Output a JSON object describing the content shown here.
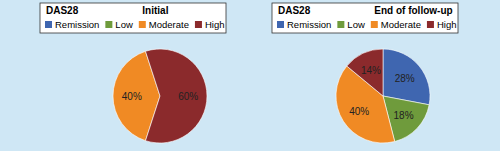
{
  "chart_data": [
    {
      "type": "pie",
      "title": "DAS28",
      "subtitle": "Initial",
      "categories": [
        "Remission",
        "Low",
        "Moderate",
        "High"
      ],
      "values": [
        0,
        0,
        40,
        60
      ],
      "value_labels": [
        null,
        null,
        "40%",
        "60%"
      ],
      "colors": [
        "#3f66b0",
        "#6f9b3c",
        "#f08a24",
        "#8b2a2c"
      ],
      "data_labels": true,
      "legend": "top"
    },
    {
      "type": "pie",
      "title": "DAS28",
      "subtitle": "End of follow-up",
      "categories": [
        "Remission",
        "Low",
        "Moderate",
        "High"
      ],
      "values": [
        28,
        18,
        40,
        14
      ],
      "value_labels": [
        "28%",
        "18%",
        "40%",
        "14%"
      ],
      "colors": [
        "#3f66b0",
        "#6f9b3c",
        "#f08a24",
        "#8b2a2c"
      ],
      "data_labels": true,
      "legend": "top"
    }
  ]
}
